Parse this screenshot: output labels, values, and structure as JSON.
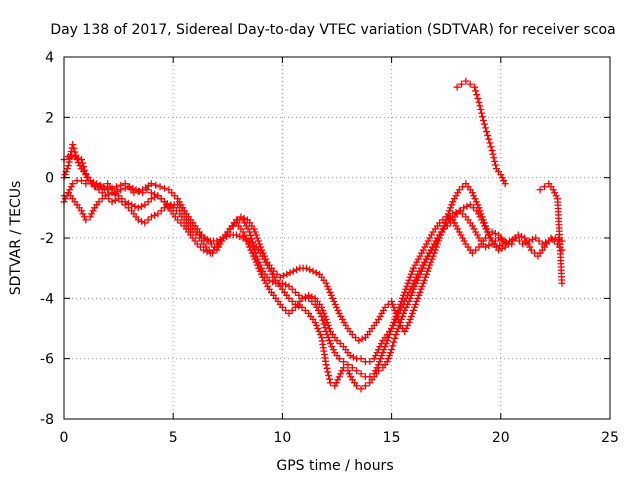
{
  "chart_data": {
    "type": "scatter",
    "title": "Day 138 of 2017, Sidereal Day-to-day VTEC variation (SDTVAR) for receiver scoa",
    "xlabel": "GPS time / hours",
    "ylabel": "SDTVAR / TECUs",
    "xlim": [
      0,
      25
    ],
    "ylim": [
      -8,
      4
    ],
    "xticks": [
      "0",
      "5",
      "10",
      "15",
      "20",
      "25"
    ],
    "yticks": [
      "4",
      "2",
      "0",
      "-2",
      "-4",
      "-6",
      "-8"
    ],
    "grid": true,
    "marker": "plus",
    "color": "#ff0000",
    "series": [
      {
        "x": [
          0.0,
          0.2,
          0.4,
          0.6,
          0.8,
          1.0,
          1.2,
          1.5,
          1.8,
          2.0,
          2.3,
          2.6,
          3.0,
          3.3,
          3.6,
          3.8,
          4.0,
          4.3,
          4.6,
          5.0,
          5.3,
          5.6,
          5.9,
          6.2,
          6.5,
          6.8,
          7.0,
          7.3,
          7.6,
          7.9,
          8.2,
          8.5,
          8.8,
          9.1,
          9.4,
          9.7,
          10.0,
          10.3,
          10.6,
          10.9,
          11.2,
          11.5,
          11.8,
          12.0,
          12.2,
          12.5,
          12.8,
          13.1,
          13.4,
          13.6,
          13.8,
          14.0,
          14.2,
          14.4,
          14.6,
          14.8,
          15.0,
          15.2,
          15.4,
          15.6,
          15.8,
          16.0,
          16.2,
          16.5,
          16.8,
          17.1,
          17.4,
          17.7,
          18.0,
          18.3,
          18.6,
          18.9,
          19.2,
          19.5,
          19.8,
          20.1,
          20.4,
          20.7,
          21.0,
          21.3,
          21.6,
          21.9,
          22.2,
          22.5,
          22.8
        ],
        "y": [
          -0.8,
          -0.5,
          -0.2,
          -0.1,
          -0.1,
          -0.2,
          -0.1,
          -0.2,
          -0.3,
          -0.2,
          -0.5,
          -0.4,
          -0.3,
          -0.4,
          -0.5,
          -0.4,
          -0.5,
          -0.6,
          -0.8,
          -1.0,
          -1.2,
          -1.5,
          -1.8,
          -2.0,
          -2.3,
          -2.5,
          -2.4,
          -2.0,
          -1.7,
          -1.4,
          -1.4,
          -1.8,
          -2.6,
          -3.1,
          -3.4,
          -3.5,
          -3.5,
          -3.6,
          -3.8,
          -4.0,
          -3.9,
          -4.0,
          -4.3,
          -4.7,
          -5.1,
          -5.4,
          -5.6,
          -5.9,
          -6.0,
          -6.0,
          -6.1,
          -6.1,
          -6.0,
          -5.7,
          -5.4,
          -5.2,
          -5.0,
          -4.7,
          -4.4,
          -4.1,
          -3.8,
          -3.5,
          -3.2,
          -2.8,
          -2.4,
          -2.0,
          -1.7,
          -1.5,
          -1.2,
          -1.0,
          -0.9,
          -1.1,
          -1.5,
          -2.0,
          -2.3,
          -2.2,
          -2.1,
          -2.0,
          -2.2,
          -2.1,
          -2.0,
          -2.2,
          -2.1,
          -2.0,
          -2.1
        ]
      },
      {
        "x": [
          0.0,
          0.2,
          0.5,
          0.8,
          1.1,
          1.4,
          1.7,
          2.0,
          2.4,
          2.8,
          3.2,
          3.6,
          4.0,
          4.4,
          4.8,
          5.2,
          5.6,
          6.0,
          6.3,
          6.6,
          6.9,
          7.2,
          7.5,
          7.8,
          8.1,
          8.4,
          8.7,
          9.0,
          9.3,
          9.6,
          9.9,
          10.2,
          10.5,
          10.8,
          11.1,
          11.4,
          11.7,
          12.0,
          12.3,
          12.6,
          12.9,
          13.2,
          13.5,
          13.8,
          14.1,
          14.4,
          14.7,
          15.0,
          15.2,
          15.4,
          15.6,
          15.8,
          16.0,
          16.3,
          16.6,
          16.9,
          17.2,
          17.5,
          17.8,
          18.1,
          18.4,
          18.7,
          19.0,
          19.3,
          19.6,
          19.9,
          20.2,
          20.5,
          20.8,
          21.1,
          21.4,
          21.7,
          22.0,
          22.3,
          22.6,
          22.8
        ],
        "y": [
          0.6,
          0.7,
          0.7,
          0.6,
          -0.1,
          -0.3,
          -0.3,
          -0.4,
          -0.3,
          -0.2,
          -0.5,
          -0.4,
          -0.2,
          -0.3,
          -0.4,
          -0.7,
          -1.2,
          -1.6,
          -1.9,
          -2.1,
          -2.3,
          -2.1,
          -1.8,
          -1.5,
          -1.3,
          -1.4,
          -1.7,
          -2.3,
          -2.8,
          -3.1,
          -3.3,
          -3.2,
          -3.1,
          -3.0,
          -3.0,
          -3.1,
          -3.2,
          -3.5,
          -4.0,
          -4.5,
          -4.9,
          -5.2,
          -5.4,
          -5.3,
          -5.0,
          -4.7,
          -4.3,
          -4.1,
          -4.5,
          -4.9,
          -5.1,
          -4.8,
          -4.4,
          -3.8,
          -3.2,
          -2.6,
          -2.0,
          -1.4,
          -0.8,
          -0.4,
          -0.2,
          -0.5,
          -1.0,
          -1.6,
          -2.1,
          -2.4,
          -2.3,
          -2.1,
          -1.9,
          -2.0,
          -2.4,
          -2.6,
          -2.3,
          -2.0,
          -2.2,
          -2.4
        ]
      },
      {
        "x": [
          0.0,
          0.2,
          0.4,
          0.6,
          0.8,
          1.0,
          1.3,
          1.6,
          1.9,
          2.2,
          2.5,
          2.8,
          3.1,
          3.4,
          3.7,
          4.0,
          4.3,
          4.6,
          4.9,
          5.2,
          5.5,
          5.8,
          6.1,
          6.4,
          6.7,
          7.0,
          7.3,
          7.6,
          7.9,
          8.2,
          8.5,
          8.8,
          9.1,
          9.4,
          9.7,
          10.0,
          10.3,
          10.6,
          10.9,
          11.2,
          11.5,
          11.8,
          12.0,
          12.2,
          12.4,
          12.6,
          12.8,
          13.0,
          13.2,
          13.4,
          13.6,
          13.8,
          14.0,
          14.2,
          14.4,
          14.6,
          14.8,
          15.0,
          15.2,
          15.4,
          15.6,
          15.8,
          16.0,
          16.3,
          16.6,
          16.9,
          17.2,
          17.5,
          17.8,
          18.1,
          18.4,
          18.7,
          19.0,
          19.3,
          19.6,
          19.9,
          20.2
        ],
        "y": [
          0.0,
          0.4,
          1.1,
          0.6,
          0.3,
          0.1,
          -0.2,
          -0.4,
          -0.6,
          -0.8,
          -0.7,
          -0.9,
          -1.1,
          -1.4,
          -1.5,
          -1.3,
          -1.2,
          -1.0,
          -0.9,
          -0.9,
          -1.2,
          -1.5,
          -1.8,
          -2.0,
          -2.1,
          -2.1,
          -2.0,
          -1.9,
          -1.9,
          -2.0,
          -2.1,
          -2.3,
          -2.6,
          -3.0,
          -3.4,
          -3.7,
          -4.0,
          -4.2,
          -4.3,
          -4.5,
          -4.8,
          -5.3,
          -6.2,
          -6.8,
          -6.9,
          -6.6,
          -6.3,
          -6.4,
          -6.7,
          -6.9,
          -7.0,
          -6.9,
          -6.8,
          -6.6,
          -6.4,
          -6.3,
          -6.1,
          -5.7,
          -5.2,
          -4.8,
          -4.4,
          -4.1,
          -3.7,
          -3.2,
          -2.7,
          -2.3,
          -1.9,
          -1.5,
          -1.2,
          -1.1,
          -1.3,
          -1.6,
          -2.0,
          -2.3,
          -2.2,
          -2.0,
          -2.1
        ]
      },
      {
        "x": [
          0.0,
          0.2,
          0.4,
          0.6,
          0.8,
          1.0,
          1.2,
          1.4,
          1.6,
          1.9,
          2.2,
          2.5,
          2.8,
          3.1,
          3.4,
          3.7,
          4.0,
          4.3,
          4.6,
          4.9,
          5.2,
          5.5,
          5.8,
          6.1,
          6.4,
          6.7,
          7.0,
          7.3,
          7.6,
          7.9,
          8.2,
          8.5,
          8.8,
          9.1,
          9.4,
          9.7,
          10.0,
          10.3,
          10.6,
          10.9,
          11.2,
          11.5,
          11.8,
          12.0,
          12.2,
          12.4,
          12.6,
          12.8,
          13.0,
          13.2,
          13.4,
          13.6,
          13.8,
          14.0,
          14.2,
          14.4,
          14.6,
          14.8,
          15.0,
          15.2,
          15.4,
          15.6,
          15.8,
          16.0,
          16.3,
          16.6,
          16.9,
          17.2,
          17.5,
          17.8,
          18.1,
          18.4,
          18.7,
          19.0,
          19.3,
          19.6,
          19.9,
          20.2,
          20.5
        ],
        "y": [
          -0.6,
          -0.5,
          -0.7,
          -0.9,
          -1.1,
          -1.4,
          -1.3,
          -1.0,
          -0.8,
          -0.6,
          -0.5,
          -0.6,
          -0.8,
          -0.9,
          -1.0,
          -0.9,
          -0.7,
          -0.6,
          -0.8,
          -1.1,
          -1.4,
          -1.6,
          -1.9,
          -2.2,
          -2.4,
          -2.5,
          -2.3,
          -2.0,
          -1.7,
          -1.5,
          -1.8,
          -2.3,
          -2.8,
          -3.3,
          -3.7,
          -4.0,
          -4.3,
          -4.5,
          -4.3,
          -4.0,
          -4.0,
          -4.2,
          -4.6,
          -5.1,
          -5.5,
          -5.8,
          -6.0,
          -6.1,
          -6.2,
          -6.3,
          -6.4,
          -6.5,
          -6.6,
          -6.6,
          -6.5,
          -6.2,
          -5.8,
          -5.4,
          -5.0,
          -4.6,
          -4.2,
          -3.8,
          -3.4,
          -3.0,
          -2.6,
          -2.2,
          -1.8,
          -1.5,
          -1.3,
          -1.4,
          -1.8,
          -2.2,
          -2.5,
          -2.3,
          -2.0,
          -1.8,
          -1.9,
          -2.2,
          -2.2
        ]
      },
      {
        "x": [
          18.0,
          18.2,
          18.4,
          18.6,
          18.8,
          19.0,
          19.2,
          19.4,
          19.6,
          19.8,
          20.0,
          20.2,
          21.8,
          22.0,
          22.2,
          22.4,
          22.6,
          22.8
        ],
        "y": [
          3.0,
          3.1,
          3.2,
          3.1,
          3.0,
          2.5,
          1.9,
          1.4,
          0.9,
          0.3,
          0.1,
          -0.2,
          -0.4,
          -0.3,
          -0.2,
          -0.4,
          -0.7,
          -3.5
        ]
      }
    ]
  }
}
